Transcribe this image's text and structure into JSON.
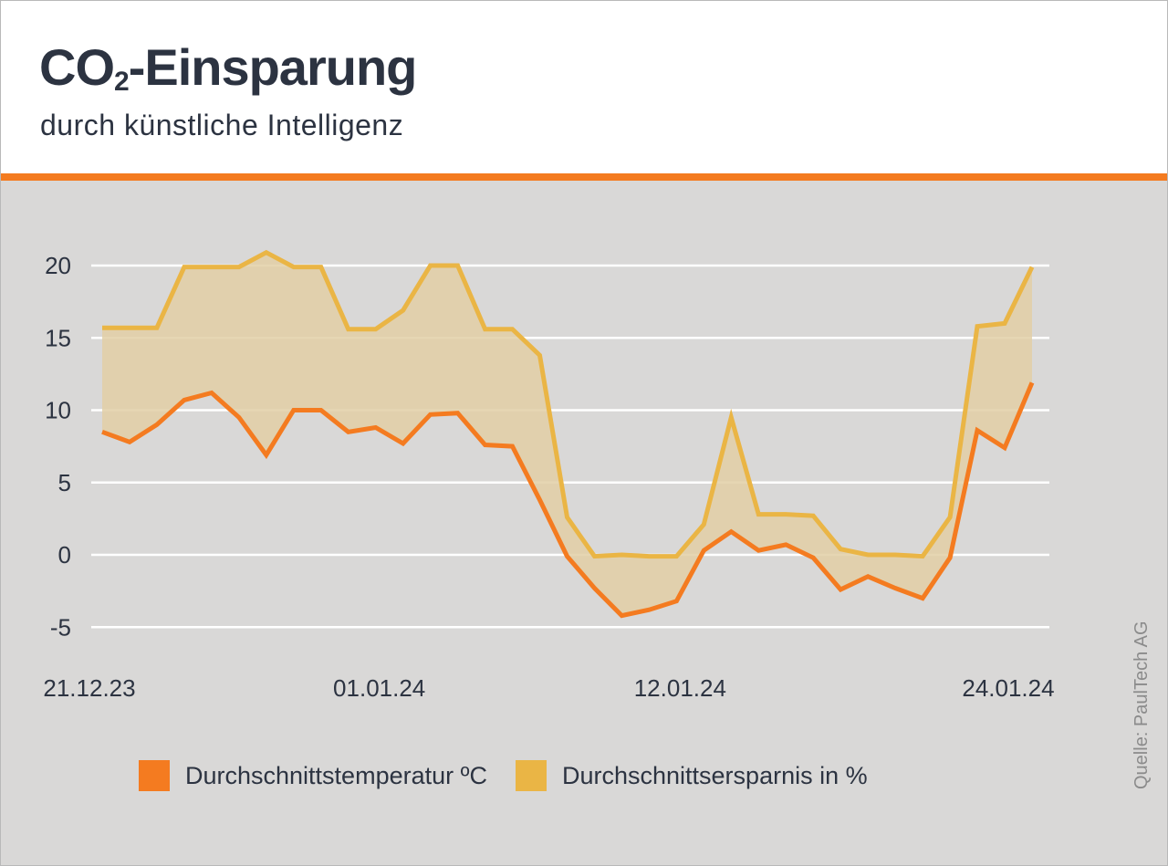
{
  "header": {
    "title_main": "CO",
    "title_sub": "2",
    "title_rest": "-Einsparung",
    "subtitle": "durch künstliche Intelligenz"
  },
  "colors": {
    "accent": "#f47b20",
    "temperature": "#f47b20",
    "savings": "#eab545",
    "area_fill": "#e2cfa6",
    "grid": "#ffffff",
    "text": "#2c3341"
  },
  "source": "Quelle: PaulTech AG",
  "chart_data": {
    "type": "line",
    "title": "CO2-Einsparung",
    "subtitle": "durch künstliche Intelligenz",
    "xlabel": "",
    "ylabel": "",
    "ylim": [
      -5,
      22
    ],
    "yticks": [
      20,
      15,
      10,
      5,
      0,
      -5
    ],
    "grid": true,
    "legend_position": "bottom",
    "x_start": "21.12.23",
    "x_end": "24.01.24",
    "x_step": "1 day",
    "xticks": [
      {
        "label": "21.12.23",
        "index": 0
      },
      {
        "label": "01.01.24",
        "index": 11
      },
      {
        "label": "12.01.24",
        "index": 22
      },
      {
        "label": "24.01.24",
        "index": 34
      }
    ],
    "area_between_series": true,
    "series": [
      {
        "name": "Durchschnittstemperatur ºC",
        "color": "#f47b20",
        "values": [
          8.5,
          7.8,
          9.0,
          10.7,
          11.2,
          9.5,
          6.9,
          10.0,
          10.0,
          8.5,
          8.8,
          7.7,
          9.7,
          9.8,
          7.6,
          7.5,
          3.8,
          -0.1,
          -2.3,
          -4.2,
          -3.8,
          -3.2,
          0.3,
          1.6,
          0.3,
          0.7,
          -0.2,
          -2.4,
          -1.5,
          -2.3,
          -3.0,
          -0.2,
          8.6,
          7.4,
          11.9
        ]
      },
      {
        "name": "Durchschnittsersparnis in %",
        "color": "#eab545",
        "values": [
          15.7,
          15.7,
          15.7,
          19.9,
          19.9,
          19.9,
          20.9,
          19.9,
          19.9,
          15.6,
          15.6,
          16.9,
          20.0,
          20.0,
          15.6,
          15.6,
          13.8,
          2.6,
          -0.1,
          0.0,
          -0.1,
          -0.1,
          2.1,
          9.5,
          2.8,
          2.8,
          2.7,
          0.4,
          0.0,
          0.0,
          -0.1,
          2.6,
          15.8,
          16.0,
          19.9
        ]
      }
    ]
  }
}
